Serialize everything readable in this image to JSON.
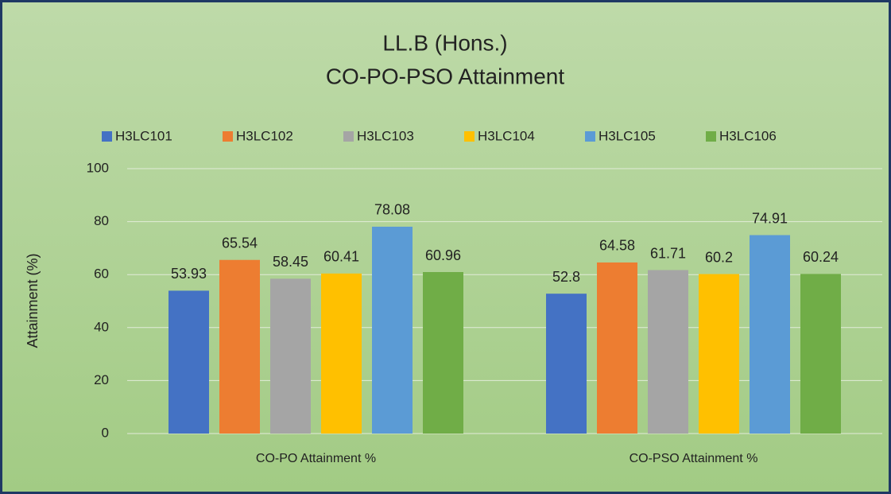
{
  "chart_data": {
    "type": "bar",
    "title": "LL.B (Hons.)",
    "subtitle": "CO-PO-PSO Attainment",
    "y_label": "Attainment (%)",
    "categories": [
      "CO-PO Attainment %",
      "CO-PSO Attainment %"
    ],
    "series": [
      {
        "name": "H3LC101",
        "color": "#4472c4",
        "values": [
          53.93,
          52.8
        ]
      },
      {
        "name": "H3LC102",
        "color": "#ed7d31",
        "values": [
          65.54,
          64.58
        ]
      },
      {
        "name": "H3LC103",
        "color": "#a5a5a5",
        "values": [
          58.45,
          61.71
        ]
      },
      {
        "name": "H3LC104",
        "color": "#ffc000",
        "values": [
          60.41,
          60.2
        ]
      },
      {
        "name": "H3LC105",
        "color": "#5b9bd5",
        "values": [
          78.08,
          74.91
        ]
      },
      {
        "name": "H3LC106",
        "color": "#70ad47",
        "values": [
          60.96,
          60.24
        ]
      }
    ],
    "ylim": [
      0,
      100
    ],
    "yticks": [
      0,
      20,
      40,
      60,
      80,
      100
    ],
    "grid": true,
    "legend": "top"
  }
}
